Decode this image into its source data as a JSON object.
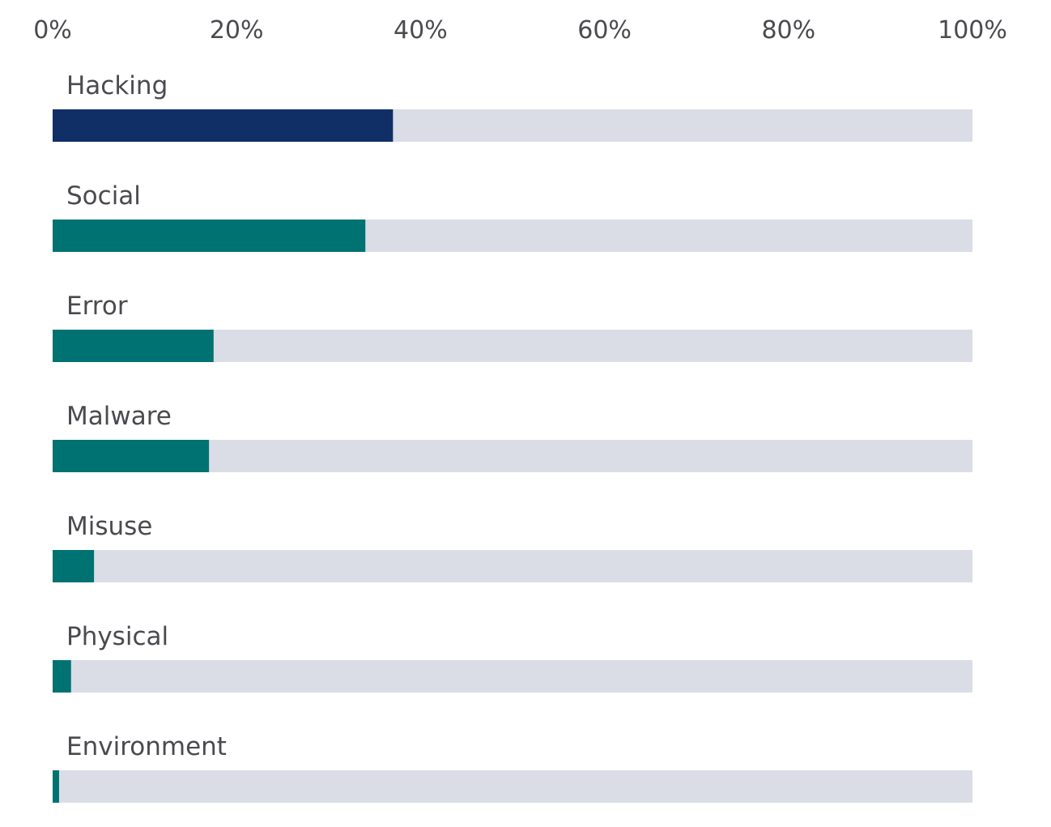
{
  "chart_data": {
    "type": "bar",
    "orientation": "horizontal",
    "title": "",
    "xlabel": "",
    "ylabel": "",
    "xlim": [
      0,
      100
    ],
    "x_ticks": [
      "0%",
      "20%",
      "40%",
      "60%",
      "80%",
      "100%"
    ],
    "x_tick_values": [
      0,
      20,
      40,
      60,
      80,
      100
    ],
    "x_axis_position": "top",
    "grid": false,
    "legend": "none",
    "categories": [
      "Hacking",
      "Social",
      "Error",
      "Malware",
      "Misuse",
      "Physical",
      "Environment"
    ],
    "values": [
      37,
      34,
      17.5,
      17,
      4.5,
      2,
      0.7
    ],
    "unit": "%",
    "colors": {
      "highlight": "#0f2f66",
      "bar": "#007272",
      "track": "#dadde6",
      "text": "#4a4a4f"
    },
    "highlight_category": "Hacking"
  }
}
